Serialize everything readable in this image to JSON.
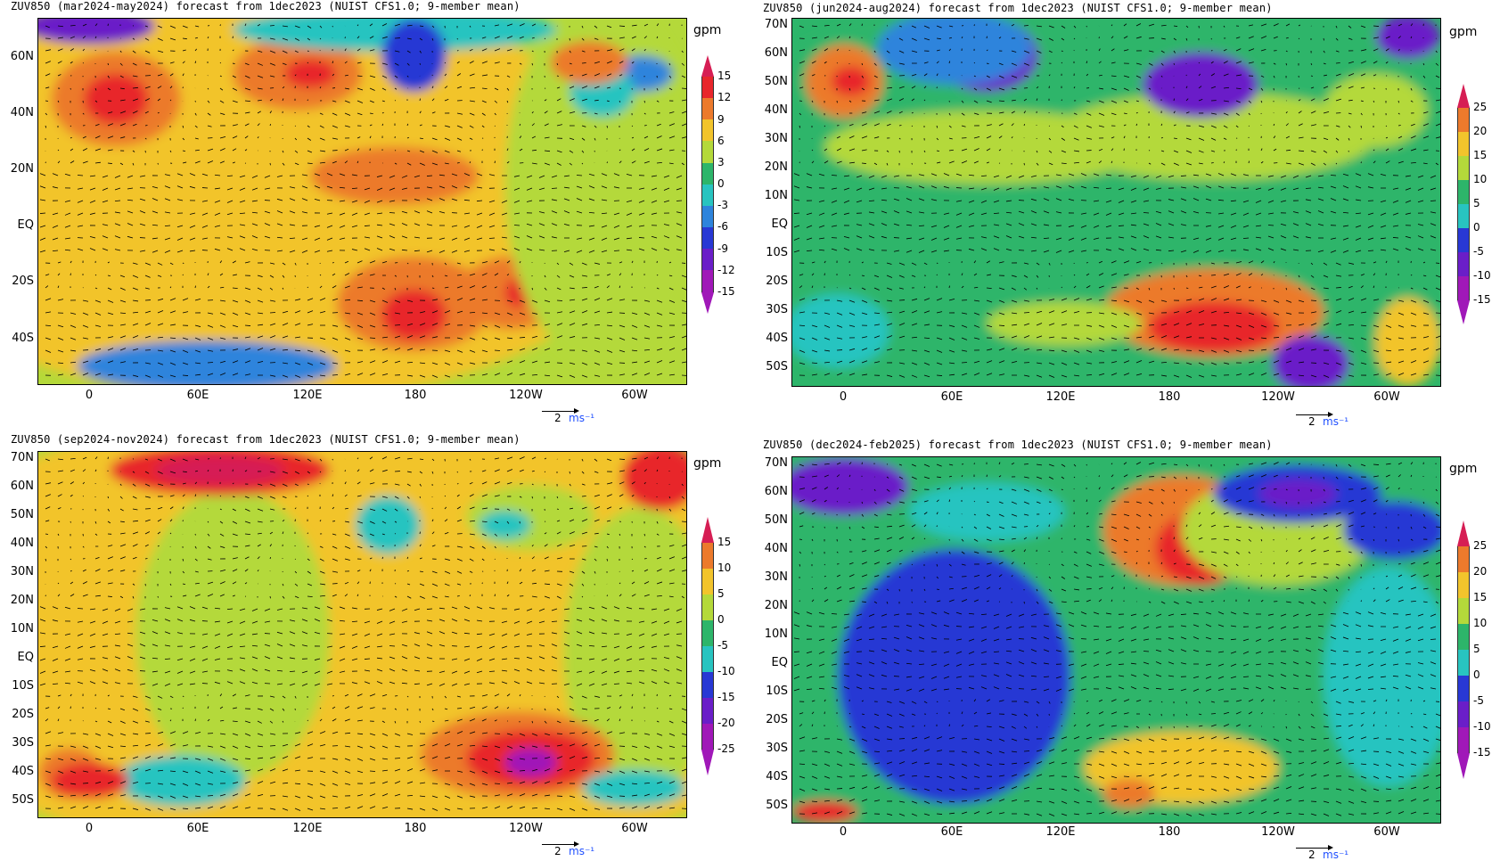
{
  "panels": [
    {
      "id": "mam",
      "title": "ZUV850 (mar2024-may2024) forecast from 1dec2023 (NUIST CFS1.0; 9-member mean)",
      "lat_labels": [
        "60N",
        "40N",
        "20N",
        "EQ",
        "20S",
        "40S"
      ],
      "lon_labels": [
        "0",
        "60E",
        "120E",
        "180",
        "120W",
        "60W"
      ],
      "unit": "gpm",
      "levels": [
        "15",
        "12",
        "9",
        "6",
        "3",
        "0",
        "-3",
        "-6",
        "-9",
        "-12",
        "-15"
      ],
      "ref_value": "2",
      "ref_unit": "ms⁻¹"
    },
    {
      "id": "jja",
      "title": "ZUV850 (jun2024-aug2024) forecast from 1dec2023 (NUIST CFS1.0; 9-member mean)",
      "lat_labels": [
        "70N",
        "60N",
        "50N",
        "40N",
        "30N",
        "20N",
        "10N",
        "EQ",
        "10S",
        "20S",
        "30S",
        "40S",
        "50S"
      ],
      "lon_labels": [
        "0",
        "60E",
        "120E",
        "180",
        "120W",
        "60W"
      ],
      "unit": "gpm",
      "levels": [
        "25",
        "20",
        "15",
        "10",
        "5",
        "0",
        "-5",
        "-10",
        "-15"
      ],
      "ref_value": "2",
      "ref_unit": "ms⁻¹"
    },
    {
      "id": "son",
      "title": "ZUV850 (sep2024-nov2024) forecast from 1dec2023 (NUIST CFS1.0; 9-member mean)",
      "lat_labels": [
        "70N",
        "60N",
        "50N",
        "40N",
        "30N",
        "20N",
        "10N",
        "EQ",
        "10S",
        "20S",
        "30S",
        "40S",
        "50S"
      ],
      "lon_labels": [
        "0",
        "60E",
        "120E",
        "180",
        "120W",
        "60W"
      ],
      "unit": "gpm",
      "levels": [
        "15",
        "10",
        "5",
        "0",
        "-5",
        "-10",
        "-15",
        "-20",
        "-25"
      ],
      "ref_value": "2",
      "ref_unit": "ms⁻¹"
    },
    {
      "id": "djf",
      "title": "ZUV850 (dec2024-feb2025) forecast from 1dec2023 (NUIST CFS1.0; 9-member mean)",
      "lat_labels": [
        "70N",
        "60N",
        "50N",
        "40N",
        "30N",
        "20N",
        "10N",
        "EQ",
        "10S",
        "20S",
        "30S",
        "40S",
        "50S"
      ],
      "lon_labels": [
        "0",
        "60E",
        "120E",
        "180",
        "120W",
        "60W"
      ],
      "unit": "gpm",
      "levels": [
        "25",
        "20",
        "15",
        "10",
        "5",
        "0",
        "-5",
        "-10",
        "-15"
      ],
      "ref_value": "2",
      "ref_unit": "ms⁻¹"
    }
  ],
  "palette": [
    "#d61e54",
    "#e8262c",
    "#ec7a2c",
    "#f2c42c",
    "#b4d93a",
    "#2db56a",
    "#28c4c0",
    "#2e84dc",
    "#2838d4",
    "#6a1ec8",
    "#a018b8"
  ]
}
